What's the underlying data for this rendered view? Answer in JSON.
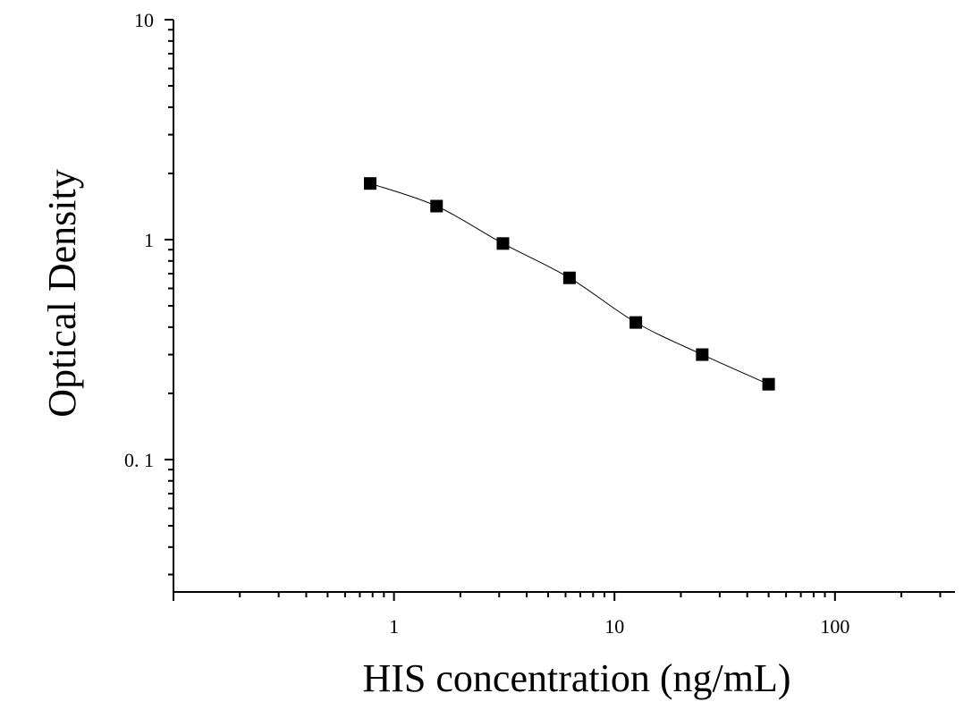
{
  "chart_data": {
    "type": "scatter",
    "title": "",
    "xlabel": "HIS concentration (ng/mL)",
    "ylabel": "Optical Density",
    "x_scale": "log",
    "y_scale": "log",
    "xlim": [
      0.1,
      350
    ],
    "ylim": [
      0.025,
      10
    ],
    "x_ticks": [
      {
        "value": 1,
        "label": "1"
      },
      {
        "value": 10,
        "label": "10"
      },
      {
        "value": 100,
        "label": "100"
      }
    ],
    "y_ticks": [
      {
        "value": 10,
        "label": "10"
      },
      {
        "value": 1,
        "label": "1"
      },
      {
        "value": 0.1,
        "label": "0. 1"
      }
    ],
    "grid": false,
    "legend": "none",
    "series": [
      {
        "marker": "square",
        "color": "#000000",
        "fit_line": true,
        "points": [
          {
            "x": 0.78,
            "y": 1.8
          },
          {
            "x": 1.56,
            "y": 1.42
          },
          {
            "x": 3.12,
            "y": 0.96
          },
          {
            "x": 6.25,
            "y": 0.67
          },
          {
            "x": 12.5,
            "y": 0.42
          },
          {
            "x": 25,
            "y": 0.3
          },
          {
            "x": 50,
            "y": 0.22
          }
        ]
      }
    ]
  }
}
